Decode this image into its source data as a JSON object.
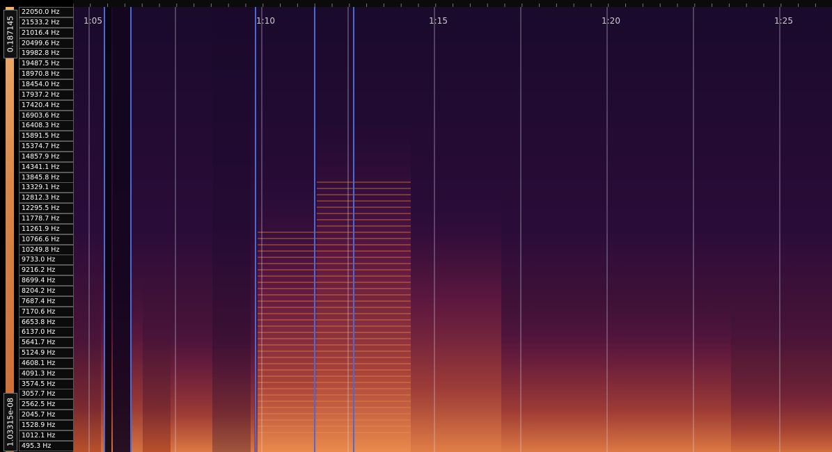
{
  "frequency_labels": [
    "22050.0 Hz",
    "21533.2 Hz",
    "21016.4 Hz",
    "20499.6 Hz",
    "19982.8 Hz",
    "19487.5 Hz",
    "18970.8 Hz",
    "18454.0 Hz",
    "17937.2 Hz",
    "17420.4 Hz",
    "16903.6 Hz",
    "16408.3 Hz",
    "15891.5 Hz",
    "15374.7 Hz",
    "14857.9 Hz",
    "14341.1 Hz",
    "13845.8 Hz",
    "13329.1 Hz",
    "12812.3 Hz",
    "12295.5 Hz",
    "11778.7 Hz",
    "11261.9 Hz",
    "10766.6 Hz",
    "10249.8 Hz",
    "9733.0 Hz",
    "9216.2 Hz",
    "8699.4 Hz",
    "8204.2 Hz",
    "7687.4 Hz",
    "7170.6 Hz",
    "6653.8 Hz",
    "6137.0 Hz",
    "5641.7 Hz",
    "5124.9 Hz",
    "4608.1 Hz",
    "4091.3 Hz",
    "3574.5 Hz",
    "3057.7 Hz",
    "2562.5 Hz",
    "2045.7 Hz",
    "1528.9 Hz",
    "1012.1 Hz",
    "495.3 Hz"
  ],
  "time_labels": [
    "1:05",
    "1:10",
    "1:15",
    "1:20",
    "1:25"
  ],
  "color_scale": {
    "max": "0.187145",
    "min": "1.03315e-08"
  }
}
